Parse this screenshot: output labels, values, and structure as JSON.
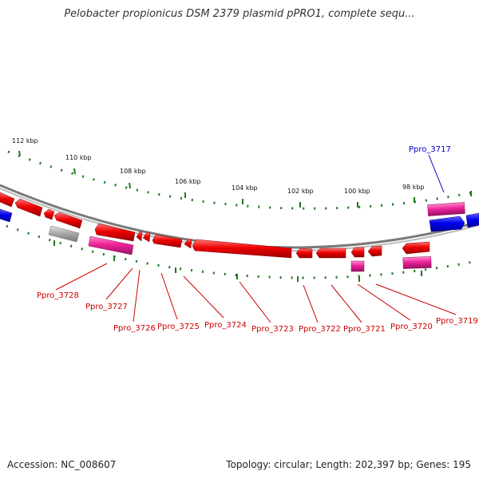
{
  "title": "Pelobacter propionicus DSM 2379 plasmid pPRO1, complete sequ...",
  "accession_label": "Accession: NC_008607",
  "summary": "Topology: circular; Length: 202,397 bp; Genes: 195",
  "colors": {
    "forward_gene": "#0000ee",
    "reverse_gene": "#ee0000",
    "rna_gene": "#ee2299",
    "other_gene": "#aaaaaa",
    "backbone": "#888888",
    "ticks": "#227722",
    "label_forward": "#0000cc",
    "label_reverse": "#cc0000"
  },
  "ticks": [
    "112 kbp",
    "110 kbp",
    "108 kbp",
    "106 kbp",
    "104 kbp",
    "102 kbp",
    "100 kbp",
    "98 kbp"
  ],
  "gene_labels": [
    "Ppro_3717",
    "Ppro_3728",
    "Ppro_3727",
    "Ppro_3726",
    "Ppro_3725",
    "Ppro_3724",
    "Ppro_3723",
    "Ppro_3722",
    "Ppro_3721",
    "Ppro_3720",
    "Ppro_3719"
  ]
}
